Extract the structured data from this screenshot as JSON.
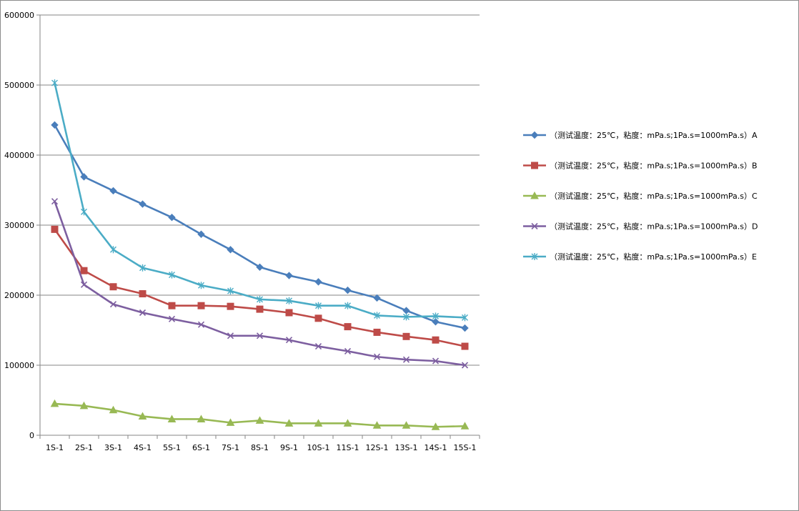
{
  "chart_data": {
    "type": "line",
    "title": "",
    "xlabel": "",
    "ylabel": "",
    "categories": [
      "1S-1",
      "2S-1",
      "3S-1",
      "4S-1",
      "5S-1",
      "6S-1",
      "7S-1",
      "8S-1",
      "9S-1",
      "10S-1",
      "11S-1",
      "12S-1",
      "13S-1",
      "14S-1",
      "15S-1"
    ],
    "ylim": [
      0,
      600000
    ],
    "yticks": [
      0,
      100000,
      200000,
      300000,
      400000,
      500000,
      600000
    ],
    "grid": true,
    "legend_position": "right",
    "series": [
      {
        "name": "（测试温度：25℃，粘度：mPa.s;1Pa.s=1000mPa.s）A",
        "color": "#4a7ebb",
        "marker": "diamond",
        "values": [
          443000,
          369000,
          349000,
          330000,
          311000,
          287000,
          265000,
          240000,
          228000,
          219000,
          207000,
          196000,
          178000,
          162000,
          153000
        ]
      },
      {
        "name": "（测试温度：25℃，粘度：mPa.s;1Pa.s=1000mPa.s）B",
        "color": "#be4b48",
        "marker": "square",
        "values": [
          294000,
          235000,
          212000,
          202000,
          185000,
          185000,
          184000,
          180000,
          175000,
          167000,
          155000,
          147000,
          141000,
          136000,
          127000
        ]
      },
      {
        "name": "（测试温度：25℃，粘度：mPa.s;1Pa.s=1000mPa.s）C",
        "color": "#98b954",
        "marker": "triangle",
        "values": [
          45000,
          42000,
          36000,
          27000,
          23000,
          23000,
          18000,
          21000,
          17000,
          17000,
          17000,
          14000,
          14000,
          12000,
          13000
        ]
      },
      {
        "name": "（测试温度：25℃，粘度：mPa.s;1Pa.s=1000mPa.s）D",
        "color": "#7d5fa0",
        "marker": "x",
        "values": [
          334000,
          215000,
          187000,
          175000,
          166000,
          158000,
          142000,
          142000,
          136000,
          127000,
          120000,
          112000,
          108000,
          106000,
          100000
        ]
      },
      {
        "name": "（测试温度：25℃，粘度：mPa.s;1Pa.s=1000mPa.s）E",
        "color": "#4bacc6",
        "marker": "star",
        "values": [
          503000,
          319000,
          265000,
          239000,
          229000,
          214000,
          206000,
          194000,
          192000,
          185000,
          185000,
          171000,
          169000,
          170000,
          168000
        ]
      }
    ]
  }
}
